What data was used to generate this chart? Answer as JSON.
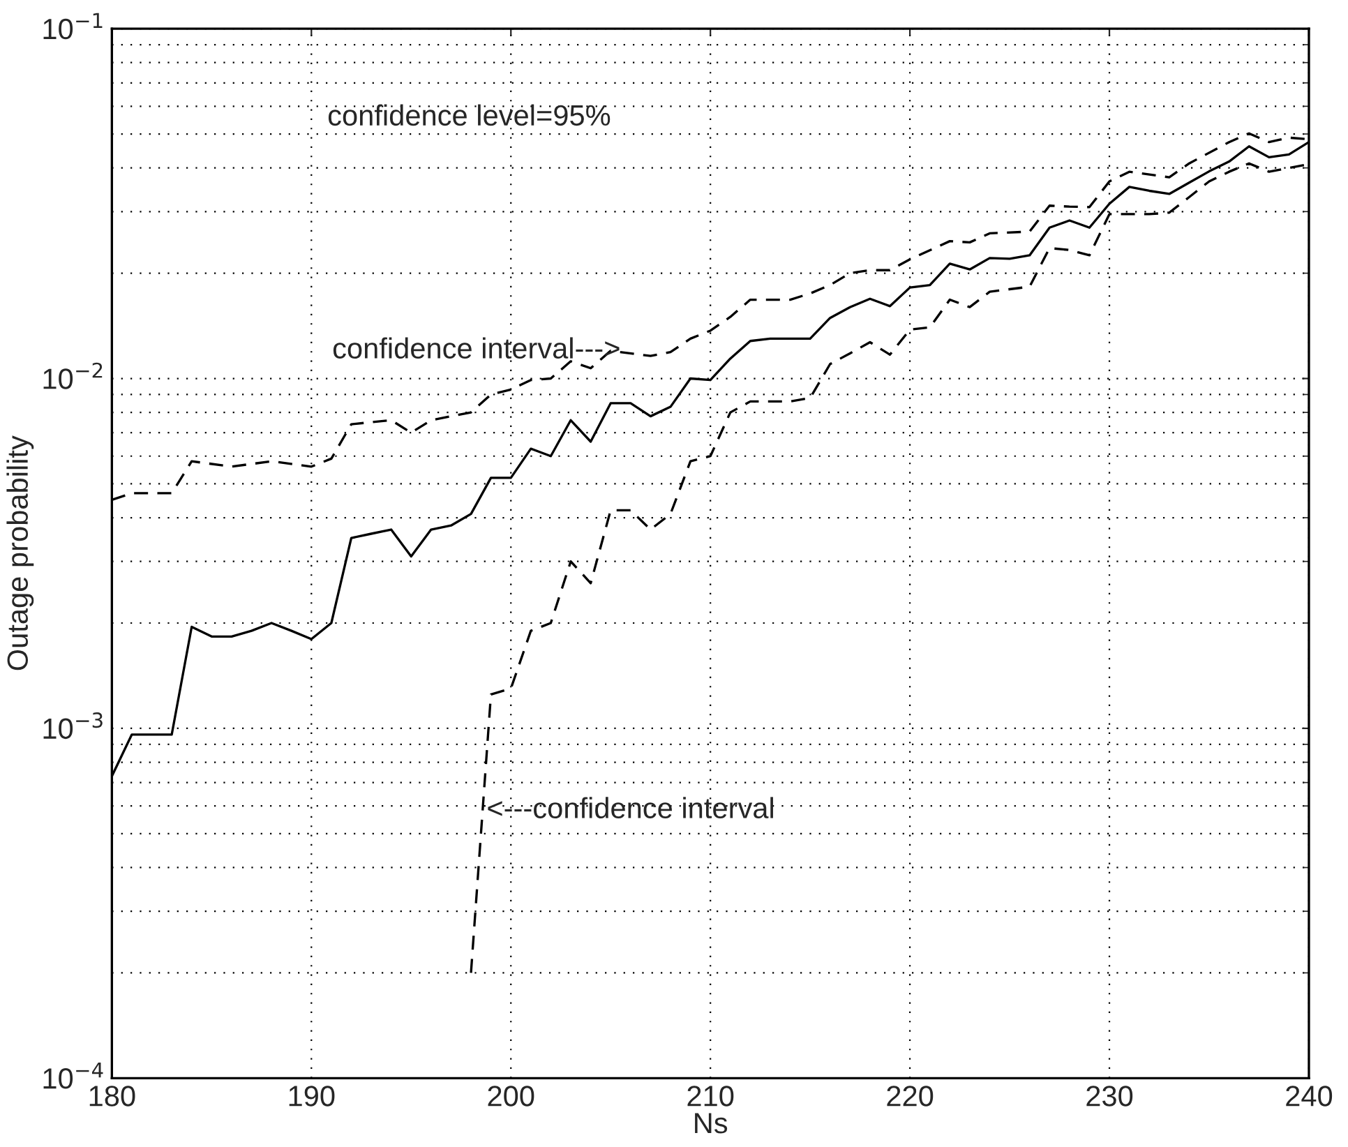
{
  "chart_data": {
    "type": "line",
    "xlabel": "Ns",
    "ylabel": "Outage probability",
    "log": "y",
    "grid": true,
    "marker": "none",
    "xlim": [
      180,
      240
    ],
    "xticks": [
      180,
      190,
      200,
      210,
      220,
      230,
      240
    ],
    "ylim": [
      0.0001,
      0.1
    ],
    "yticks": [
      {
        "value": 0.0001,
        "label": "10$^{−4}$"
      },
      {
        "value": 0.001,
        "label": "10$^{−3}$"
      },
      {
        "value": 0.01,
        "label": "10$^{−2}$"
      },
      {
        "value": 0.1,
        "label": "10$^{−1}$"
      }
    ],
    "series": [
      {
        "color": "#000000",
        "line_style": "solid",
        "x": [
          180,
          181,
          182,
          183,
          184,
          185,
          186,
          187,
          188,
          189,
          190,
          191,
          192,
          193,
          194,
          195,
          196,
          197,
          198,
          199,
          200,
          201,
          202,
          203,
          204,
          205,
          206,
          207,
          208,
          209,
          210,
          211,
          212,
          213,
          214,
          215,
          216,
          217,
          218,
          219,
          220,
          221,
          222,
          223,
          224,
          225,
          226,
          227,
          228,
          229,
          230,
          231,
          232,
          233,
          234,
          235,
          236,
          237,
          238,
          239,
          240
        ],
        "values": [
          0.00073,
          0.00096,
          0.00096,
          0.00096,
          0.00195,
          0.00183,
          0.00183,
          0.0019,
          0.002,
          0.0019,
          0.0018,
          0.002,
          0.0035,
          0.0036,
          0.0037,
          0.0031,
          0.0037,
          0.0038,
          0.0041,
          0.0052,
          0.0052,
          0.0063,
          0.006,
          0.0076,
          0.0066,
          0.0085,
          0.0085,
          0.0078,
          0.0083,
          0.01,
          0.0099,
          0.0114,
          0.0128,
          0.013,
          0.013,
          0.013,
          0.0149,
          0.016,
          0.0169,
          0.0161,
          0.0182,
          0.0185,
          0.0213,
          0.0205,
          0.0221,
          0.022,
          0.0225,
          0.027,
          0.0283,
          0.027,
          0.0316,
          0.0353,
          0.0344,
          0.0337,
          0.0363,
          0.0391,
          0.0417,
          0.0461,
          0.0429,
          0.0437,
          0.0474
        ]
      },
      {
        "color": "#000000",
        "line_style": "dashed",
        "x": [
          180,
          181,
          183,
          184,
          186,
          188,
          190,
          191,
          192,
          193,
          194,
          195,
          196,
          197,
          198,
          199,
          200,
          201,
          202,
          203,
          204,
          205,
          207,
          208,
          209,
          210,
          211,
          212,
          214,
          215,
          216,
          217,
          218,
          219,
          220,
          222,
          223,
          224,
          226,
          227,
          228,
          229,
          230,
          231,
          233,
          234,
          236,
          237,
          238,
          239,
          240
        ],
        "values": [
          0.0045,
          0.0047,
          0.0047,
          0.0058,
          0.0056,
          0.0058,
          0.0056,
          0.0059,
          0.0074,
          0.0075,
          0.0076,
          0.007,
          0.0076,
          0.0078,
          0.008,
          0.009,
          0.0093,
          0.0099,
          0.01,
          0.0112,
          0.0107,
          0.012,
          0.0116,
          0.0119,
          0.013,
          0.0137,
          0.015,
          0.0168,
          0.0168,
          0.0175,
          0.0185,
          0.02,
          0.0204,
          0.0204,
          0.0219,
          0.0247,
          0.0245,
          0.026,
          0.0263,
          0.0312,
          0.031,
          0.0309,
          0.0366,
          0.039,
          0.0376,
          0.0412,
          0.0474,
          0.0502,
          0.0474,
          0.0488,
          0.0483
        ]
      },
      {
        "color": "#000000",
        "line_style": "dashed",
        "x": [
          198,
          199,
          200,
          201,
          202,
          203,
          204,
          205,
          206,
          207,
          208,
          209,
          210,
          211,
          212,
          213,
          214,
          215,
          216,
          217,
          218,
          219,
          220,
          221,
          222,
          223,
          224,
          225,
          226,
          227,
          228,
          229,
          230,
          231,
          232,
          233,
          234,
          235,
          236,
          237,
          238,
          239,
          240
        ],
        "values": [
          0.0002,
          0.00125,
          0.0013,
          0.0019,
          0.002,
          0.003,
          0.0026,
          0.0042,
          0.0042,
          0.0037,
          0.0041,
          0.0058,
          0.006,
          0.008,
          0.0086,
          0.0086,
          0.0086,
          0.0088,
          0.011,
          0.0118,
          0.0127,
          0.0117,
          0.0138,
          0.014,
          0.0168,
          0.016,
          0.0177,
          0.018,
          0.0183,
          0.0236,
          0.0233,
          0.0225,
          0.0295,
          0.0295,
          0.0295,
          0.0298,
          0.033,
          0.0366,
          0.039,
          0.0412,
          0.039,
          0.04,
          0.041
        ]
      }
    ],
    "annotations": [
      "confidence level=95%",
      {
        "text": "confidence interval--->",
        "x": 205.5,
        "y": 0.012
      },
      "<---confidence interval"
    ]
  }
}
